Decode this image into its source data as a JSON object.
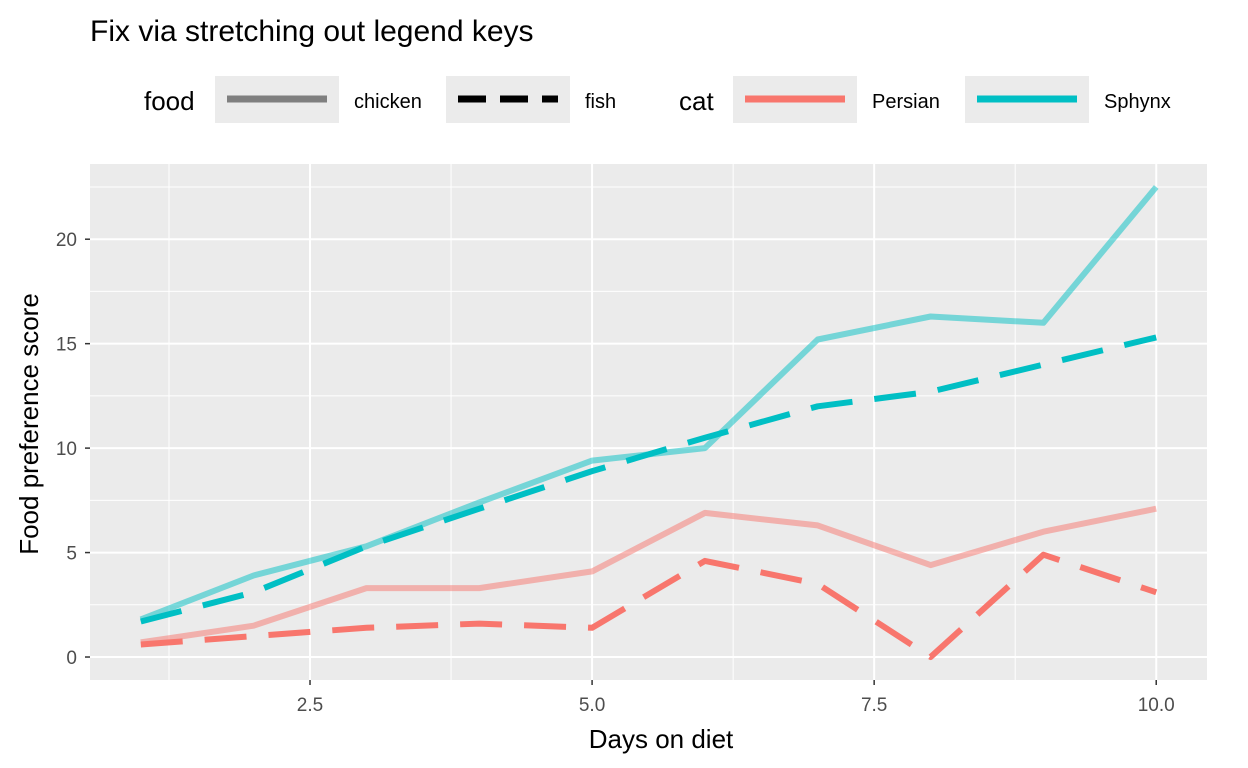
{
  "chart_data": {
    "type": "line",
    "title": "Fix via stretching out legend keys",
    "xlabel": "Days on diet",
    "ylabel": "Food preference score",
    "xlim": [
      0.55,
      10.45
    ],
    "ylim": [
      -1.1,
      23.6
    ],
    "x_ticks": [
      2.5,
      5.0,
      7.5,
      10.0
    ],
    "x_tick_labels": [
      "2.5",
      "5.0",
      "7.5",
      "10.0"
    ],
    "x_minor_ticks": [
      1.25,
      3.75,
      6.25,
      8.75
    ],
    "y_ticks": [
      0,
      5,
      10,
      15,
      20
    ],
    "y_tick_labels": [
      "0",
      "5",
      "10",
      "15",
      "20"
    ],
    "y_minor_ticks": [
      2.5,
      7.5,
      12.5,
      17.5,
      22.5
    ],
    "grid": true,
    "legend": {
      "position": "top",
      "groups": [
        {
          "title": "food",
          "entries": [
            {
              "label": "chicken",
              "key": "chicken"
            },
            {
              "label": "fish",
              "key": "fish"
            }
          ]
        },
        {
          "title": "cat",
          "entries": [
            {
              "label": "Persian",
              "key": "Persian"
            },
            {
              "label": "Sphynx",
              "key": "Sphynx"
            }
          ]
        }
      ]
    },
    "colors": {
      "Persian": "#F8766D",
      "Sphynx": "#00BFC4",
      "legend_gray": "#7f7f7f",
      "legend_black": "#000000",
      "panel": "#EBEBEB",
      "legend_key_bg": "#EBEBEB"
    },
    "series": [
      {
        "cat": "Persian",
        "food": "chicken",
        "x": [
          1,
          2,
          3,
          4,
          5,
          6,
          7,
          8,
          9,
          10
        ],
        "y": [
          0.7,
          1.5,
          3.3,
          3.3,
          4.1,
          6.9,
          6.3,
          4.4,
          6.0,
          7.1
        ]
      },
      {
        "cat": "Persian",
        "food": "fish",
        "x": [
          1,
          2,
          3,
          4,
          5,
          6,
          7,
          8,
          9,
          10
        ],
        "y": [
          0.6,
          1.0,
          1.4,
          1.6,
          1.4,
          4.6,
          3.5,
          0.0,
          4.9,
          3.1
        ]
      },
      {
        "cat": "Sphynx",
        "food": "chicken",
        "x": [
          1,
          2,
          3,
          4,
          5,
          6,
          7,
          8,
          9,
          10
        ],
        "y": [
          1.8,
          3.9,
          5.3,
          7.4,
          9.4,
          10.0,
          15.2,
          16.3,
          16.0,
          22.5
        ]
      },
      {
        "cat": "Sphynx",
        "food": "fish",
        "x": [
          1,
          2,
          3,
          4,
          5,
          6,
          7,
          8,
          9,
          10
        ],
        "y": [
          1.7,
          3.1,
          5.3,
          7.1,
          8.9,
          10.5,
          12.0,
          12.7,
          14.0,
          15.3
        ]
      }
    ]
  }
}
